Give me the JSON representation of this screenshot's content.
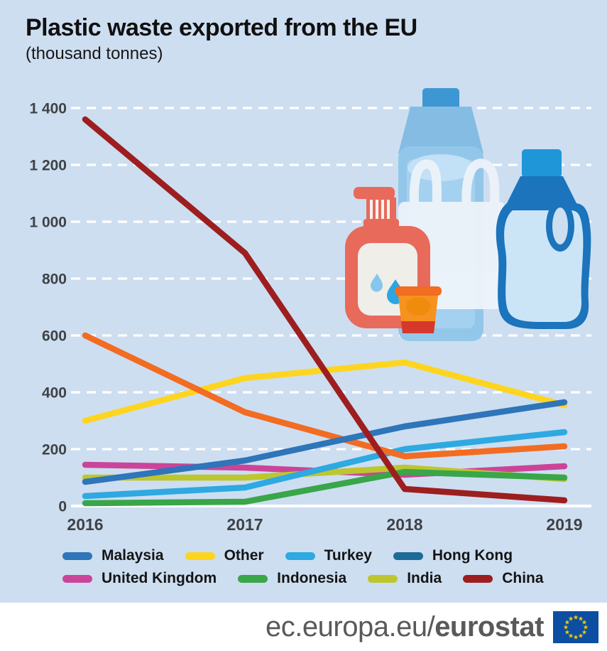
{
  "header": {
    "title": "Plastic waste exported from the EU",
    "subtitle": "(thousand tonnes)"
  },
  "chart_data": {
    "type": "line",
    "title": "Plastic waste exported from the EU",
    "subtitle": "(thousand tonnes)",
    "x_labels": [
      "2016",
      "2017",
      "2018",
      "2019"
    ],
    "y_ticks": [
      "1 400",
      "1 200",
      "1 000",
      "800",
      "600",
      "400",
      "200",
      "0"
    ],
    "y_tick_values": [
      1400,
      1200,
      1000,
      800,
      600,
      400,
      200,
      0
    ],
    "ylim": [
      0,
      1450
    ],
    "grid": "horizontal-dashed-white",
    "legend_position": "bottom",
    "series": [
      {
        "name": "Malaysia",
        "color": "#2e75b9",
        "values": [
          85,
          160,
          280,
          365
        ]
      },
      {
        "name": "Other",
        "color": "#fdd51e",
        "values": [
          300,
          450,
          505,
          355
        ]
      },
      {
        "name": "Turkey",
        "color": "#2ea9e1",
        "values": [
          35,
          65,
          200,
          260
        ]
      },
      {
        "name": "Hong Kong",
        "color": "#f26c21",
        "legend_color": "#1e6b96",
        "values": [
          600,
          330,
          175,
          210
        ]
      },
      {
        "name": "United Kingdom",
        "color": "#ca4599",
        "values": [
          145,
          135,
          110,
          140
        ]
      },
      {
        "name": "Indonesia",
        "color": "#39a649",
        "values": [
          10,
          15,
          120,
          100
        ]
      },
      {
        "name": "India",
        "color": "#bdc62f",
        "values": [
          100,
          100,
          135,
          95
        ]
      },
      {
        "name": "China",
        "color": "#9d1e1f",
        "values": [
          1360,
          890,
          60,
          20
        ]
      }
    ],
    "legend_rows": [
      [
        "Malaysia",
        "Other",
        "Turkey",
        "Hong Kong"
      ],
      [
        "United Kingdom",
        "Indonesia",
        "India",
        "China"
      ]
    ]
  },
  "illustration": {
    "items": [
      "water-bottle",
      "plastic-bag",
      "soap-dispenser",
      "plastic-cup",
      "detergent-bottle"
    ]
  },
  "colors": {
    "background": "#cddef1",
    "grid": "#ffffff",
    "footer_text": "#58595b",
    "flag_blue": "#0b4ea2",
    "flag_stars": "#ffcc00"
  },
  "footer": {
    "url_regular": "ec.europa.eu/",
    "url_bold": "eurostat"
  }
}
